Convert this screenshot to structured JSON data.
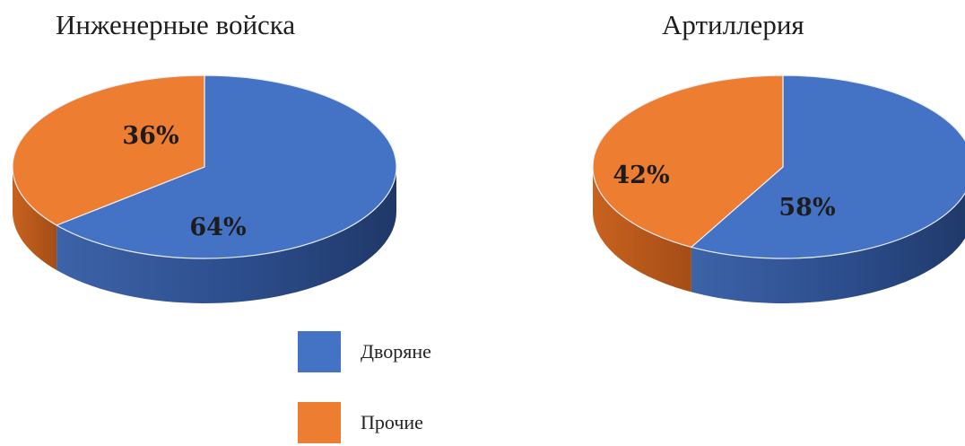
{
  "chart_data": [
    {
      "type": "pie",
      "title": "Инженерные войска",
      "categories": [
        "Дворяне",
        "Прочие"
      ],
      "values": [
        64,
        36
      ],
      "labels": [
        "64%",
        "36%"
      ],
      "colors": [
        "#4472C4",
        "#ED7D31"
      ]
    },
    {
      "type": "pie",
      "title": "Артиллерия",
      "categories": [
        "Дворяне",
        "Прочие"
      ],
      "values": [
        58,
        42
      ],
      "labels": [
        "58%",
        "42%"
      ],
      "colors": [
        "#4472C4",
        "#ED7D31"
      ]
    }
  ],
  "legend": {
    "placement": "bottom-center",
    "items": [
      {
        "label": "Дворяне",
        "color": "#4472C4"
      },
      {
        "label": "Прочие",
        "color": "#ED7D31"
      }
    ]
  }
}
